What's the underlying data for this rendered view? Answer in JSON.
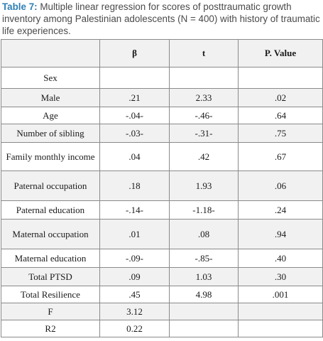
{
  "caption": {
    "label": "Table 7:",
    "text": "Multiple linear regression for scores of posttraumatic growth inventory among Palestinian adolescents (N = 400) with history of traumatic life experiences."
  },
  "table": {
    "headers": [
      "",
      "β",
      "t",
      "P. Value"
    ],
    "rows": [
      [
        "Sex",
        "",
        "",
        ""
      ],
      [
        "Male",
        ".21",
        "2.33",
        ".02"
      ],
      [
        "Age",
        "-.04-",
        "-.46-",
        ".64"
      ],
      [
        "Number of sibling",
        "-.03-",
        "-.31-",
        ".75"
      ],
      [
        "Family monthly income",
        ".04",
        ".42",
        ".67"
      ],
      [
        "Paternal occupation",
        ".18",
        "1.93",
        ".06"
      ],
      [
        "Paternal education",
        "-.14-",
        "-1.18-",
        ".24"
      ],
      [
        "Maternal occupation",
        ".01",
        ".08",
        ".94"
      ],
      [
        "Maternal education",
        "-.09-",
        "-.85-",
        ".40"
      ],
      [
        "Total PTSD",
        ".09",
        "1.03",
        ".30"
      ],
      [
        "Total Resilience",
        ".45",
        "4.98",
        ".001"
      ],
      [
        "F",
        "3.12",
        "",
        ""
      ],
      [
        "R2",
        "0.22",
        "",
        ""
      ]
    ]
  }
}
